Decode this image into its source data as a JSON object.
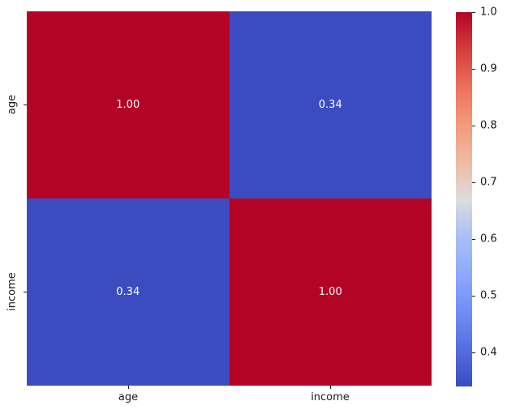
{
  "chart_data": {
    "type": "heatmap",
    "title": "",
    "categories": [
      "age",
      "income"
    ],
    "matrix": [
      [
        1.0,
        0.34
      ],
      [
        0.34,
        1.0
      ]
    ],
    "cell_labels": [
      [
        "1.00",
        "0.34"
      ],
      [
        "0.34",
        "1.00"
      ]
    ],
    "cell_colors": [
      [
        "#b40426",
        "#3b4cc0"
      ],
      [
        "#3b4cc0",
        "#b40426"
      ]
    ],
    "annotation_color": "#ffffff",
    "colormap": "coolwarm",
    "vmin": 0.34,
    "vmax": 1.0,
    "background": "#ffffff",
    "legend_position": "right-colorbar",
    "grid": false,
    "colorbar": {
      "tick_labels": [
        "1.0",
        "0.9",
        "0.8",
        "0.7",
        "0.6",
        "0.5",
        "0.4"
      ],
      "gradient_stops_top_to_bottom": [
        "#b40426",
        "#d53e3b",
        "#ec705b",
        "#f49a7b",
        "#eebaa2",
        "#dddcdc",
        "#aabef7",
        "#8ea9fe",
        "#718ef6",
        "#556ee0",
        "#3b4cc0"
      ]
    }
  }
}
